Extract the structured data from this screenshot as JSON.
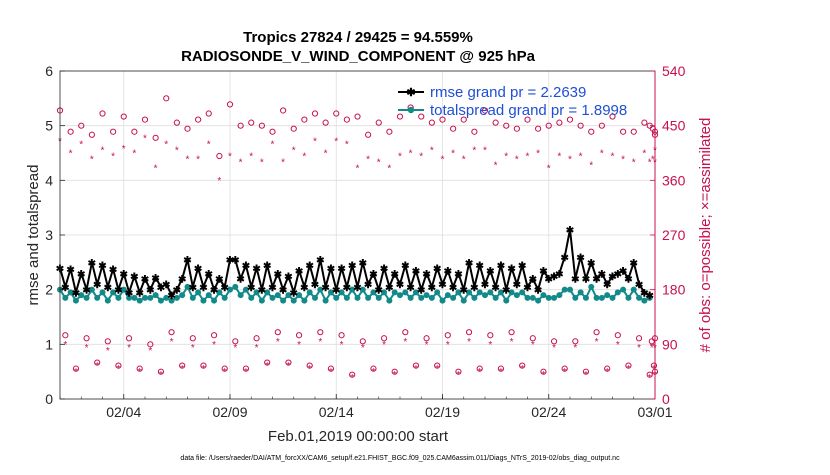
{
  "figure": {
    "title_line1": "Tropics 27824 / 29425 = 94.559%",
    "title_line2": "RADIOSONDE_V_WIND_COMPONENT @ 925 hPa",
    "footer": "data file: /Users/raeder/DAI/ATM_forcXX/CAM6_setup/f.e21.FHIST_BGC.f09_025.CAM6assim.011/Diags_NTrS_2019-02/obs_diag_output.nc"
  },
  "colors": {
    "rmse": "#000000",
    "spread": "#138a8a",
    "obs": "#c8104c",
    "legend_text": "#1f4fd6",
    "grid": "#dedede"
  },
  "chart_data": {
    "type": "line",
    "title": "Tropics 27824 / 29425 = 94.559%",
    "subtitle": "RADIOSONDE_V_WIND_COMPONENT @ 925 hPa",
    "xlabel": "Feb.01,2019 00:00:00 start",
    "ylabel": "rmse and totalspread",
    "y2label": "# of obs: o=possible; ×=assimilated",
    "xlim": [
      1,
      29
    ],
    "ylim": [
      0,
      6
    ],
    "y2lim": [
      0,
      540
    ],
    "x_ticks": [
      {
        "x": 4,
        "label": "02/04"
      },
      {
        "x": 9,
        "label": "02/09"
      },
      {
        "x": 14,
        "label": "02/14"
      },
      {
        "x": 19,
        "label": "02/19"
      },
      {
        "x": 24,
        "label": "02/24"
      },
      {
        "x": 29,
        "label": "03/01"
      }
    ],
    "y_ticks": [
      0,
      1,
      2,
      3,
      4,
      5,
      6
    ],
    "y2_ticks": [
      0,
      90,
      180,
      270,
      360,
      450,
      540
    ],
    "legend": [
      "rmse grand pr = 2.2639",
      "totalspread grand pr = 1.8998"
    ],
    "x": [
      1.0,
      1.25,
      1.5,
      1.75,
      2.0,
      2.25,
      2.5,
      2.75,
      3.0,
      3.25,
      3.5,
      3.75,
      4.0,
      4.25,
      4.5,
      4.75,
      5.0,
      5.25,
      5.5,
      5.75,
      6.0,
      6.25,
      6.5,
      6.75,
      7.0,
      7.25,
      7.5,
      7.75,
      8.0,
      8.25,
      8.5,
      8.75,
      9.0,
      9.25,
      9.5,
      9.75,
      10.0,
      10.25,
      10.5,
      10.75,
      11.0,
      11.25,
      11.5,
      11.75,
      12.0,
      12.25,
      12.5,
      12.75,
      13.0,
      13.25,
      13.5,
      13.75,
      14.0,
      14.25,
      14.5,
      14.75,
      15.0,
      15.25,
      15.5,
      15.75,
      16.0,
      16.25,
      16.5,
      16.75,
      17.0,
      17.25,
      17.5,
      17.75,
      18.0,
      18.25,
      18.5,
      18.75,
      19.0,
      19.25,
      19.5,
      19.75,
      20.0,
      20.25,
      20.5,
      20.75,
      21.0,
      21.25,
      21.5,
      21.75,
      22.0,
      22.25,
      22.5,
      22.75,
      23.0,
      23.25,
      23.5,
      23.75,
      24.0,
      24.25,
      24.5,
      24.75,
      25.0,
      25.25,
      25.5,
      25.75,
      26.0,
      26.25,
      26.5,
      26.75,
      27.0,
      27.25,
      27.5,
      27.75,
      28.0,
      28.25,
      28.5,
      28.75
    ],
    "series": [
      {
        "name": "rmse",
        "values": [
          2.4,
          2.05,
          2.38,
          1.95,
          2.3,
          2.0,
          2.5,
          2.1,
          2.45,
          2.05,
          2.38,
          2.0,
          2.3,
          1.95,
          2.25,
          1.95,
          2.2,
          2.0,
          2.22,
          2.05,
          2.1,
          1.9,
          2.0,
          2.2,
          2.55,
          2.05,
          2.4,
          2.05,
          2.3,
          2.0,
          2.2,
          2.05,
          2.55,
          2.55,
          2.2,
          2.45,
          2.05,
          2.4,
          2.0,
          2.45,
          2.05,
          2.3,
          2.0,
          2.25,
          1.95,
          2.35,
          2.05,
          2.45,
          2.1,
          2.55,
          2.05,
          2.4,
          2.0,
          2.4,
          2.05,
          2.45,
          2.05,
          2.5,
          2.1,
          2.3,
          2.0,
          2.4,
          2.05,
          2.3,
          2.1,
          2.45,
          2.05,
          2.35,
          2.0,
          2.3,
          2.05,
          2.4,
          2.1,
          2.35,
          2.05,
          2.3,
          2.0,
          2.5,
          2.05,
          2.45,
          2.1,
          2.35,
          2.05,
          2.45,
          2.0,
          2.4,
          2.1,
          2.45,
          2.05,
          2.2,
          2.0,
          2.35,
          2.2,
          2.25,
          2.3,
          2.6,
          3.1,
          2.2,
          2.6,
          2.2,
          2.5,
          2.2,
          2.3,
          2.1,
          2.25,
          2.3,
          2.35,
          2.2,
          2.5,
          2.1,
          1.95,
          1.9
        ]
      },
      {
        "name": "totalspread",
        "values": [
          2.0,
          1.85,
          1.95,
          1.8,
          1.9,
          1.85,
          2.0,
          1.85,
          1.95,
          1.8,
          1.95,
          1.85,
          2.0,
          1.85,
          1.85,
          1.8,
          1.85,
          1.85,
          1.9,
          1.8,
          1.85,
          1.8,
          1.85,
          1.9,
          2.05,
          1.85,
          1.95,
          1.8,
          1.9,
          1.8,
          1.95,
          1.85,
          2.0,
          2.05,
          1.9,
          2.0,
          1.85,
          1.95,
          1.8,
          1.95,
          1.85,
          1.9,
          1.8,
          1.9,
          1.8,
          1.9,
          1.8,
          1.95,
          1.85,
          2.0,
          1.8,
          1.95,
          1.85,
          1.95,
          1.85,
          2.0,
          1.85,
          2.0,
          1.85,
          1.95,
          1.85,
          1.95,
          1.8,
          1.95,
          1.9,
          1.95,
          1.85,
          1.95,
          1.85,
          1.9,
          1.85,
          1.95,
          1.8,
          1.9,
          1.85,
          1.95,
          1.8,
          1.95,
          1.85,
          1.95,
          1.9,
          1.95,
          1.85,
          1.95,
          1.8,
          1.95,
          1.9,
          1.95,
          1.85,
          1.85,
          1.8,
          1.9,
          1.85,
          1.85,
          1.9,
          2.0,
          2.0,
          1.85,
          1.95,
          1.85,
          2.05,
          1.85,
          1.85,
          1.9,
          1.85,
          1.95,
          2.0,
          1.85,
          2.0,
          1.85,
          1.8,
          1.85
        ]
      }
    ],
    "obs_possible_00z": [
      475,
      440,
      450,
      435,
      470,
      440,
      465,
      440,
      460,
      430,
      495,
      455,
      445,
      460,
      470,
      400,
      485,
      450,
      455,
      450,
      440,
      475,
      445,
      460,
      470,
      455,
      470,
      460,
      465,
      435,
      455,
      440,
      465,
      480,
      465,
      455,
      460,
      445,
      460,
      440,
      475,
      455,
      450,
      445,
      460,
      445,
      450,
      455,
      460,
      450,
      440,
      450,
      465,
      440,
      440,
      455,
      450,
      445,
      435,
      440
    ],
    "obs_assim_00z": [
      425,
      405,
      420,
      395,
      410,
      400,
      412,
      405,
      430,
      380,
      420,
      410,
      395,
      395,
      420,
      360,
      400,
      390,
      400,
      390,
      420,
      390,
      410,
      400,
      425,
      405,
      425,
      420,
      380,
      395,
      390,
      380,
      400,
      405,
      400,
      410,
      395,
      405,
      395,
      410,
      410,
      385,
      400,
      395,
      400,
      405,
      380,
      400,
      395,
      400,
      385,
      405,
      400,
      395,
      390,
      405,
      390,
      395,
      410,
      390
    ],
    "obs_possible_12z": [
      105,
      50,
      100,
      60,
      95,
      55,
      100,
      50,
      90,
      45,
      110,
      55,
      100,
      55,
      105,
      50,
      95,
      50,
      100,
      60,
      110,
      60,
      105,
      55,
      110,
      50,
      105,
      40,
      95,
      50,
      100,
      45,
      110,
      55,
      100,
      55,
      105,
      45,
      110,
      50,
      105,
      50,
      110,
      55,
      100,
      45,
      95,
      50,
      95,
      45,
      110,
      50,
      105,
      55,
      100,
      40,
      95,
      55,
      100,
      45
    ],
    "obs_assim_12z": [
      90,
      45,
      85,
      55,
      80,
      50,
      85,
      45,
      80,
      40,
      95,
      50,
      85,
      50,
      90,
      45,
      85,
      45,
      85,
      55,
      95,
      55,
      90,
      50,
      95,
      45,
      90,
      35,
      85,
      45,
      90,
      40,
      95,
      50,
      90,
      50,
      90,
      40,
      95,
      45,
      90,
      45,
      95,
      50,
      90,
      40,
      85,
      45,
      85,
      40,
      95,
      45,
      90,
      50,
      85,
      35,
      85,
      50,
      85,
      40
    ],
    "obs_times_00z": [
      1.0,
      1.5,
      2.0,
      2.5,
      3.0,
      3.5,
      4.0,
      4.5,
      5.0,
      5.5,
      6.0,
      6.5,
      7.0,
      7.5,
      8.0,
      8.5,
      9.0,
      9.5,
      10.0,
      10.5,
      11.0,
      11.5,
      12.0,
      12.5,
      13.0,
      13.5,
      14.0,
      14.5,
      15.0,
      15.5,
      16.0,
      16.5,
      17.0,
      17.5,
      18.0,
      18.5,
      19.0,
      19.5,
      20.0,
      20.5,
      21.0,
      21.5,
      22.0,
      22.5,
      23.0,
      23.5,
      24.0,
      24.5,
      25.0,
      25.5,
      26.0,
      26.5,
      27.0,
      27.5,
      28.0,
      28.5,
      28.75,
      28.9,
      29.0,
      29.0
    ],
    "obs_times_12z": [
      1.25,
      1.75,
      2.25,
      2.75,
      3.25,
      3.75,
      4.25,
      4.75,
      5.25,
      5.75,
      6.25,
      6.75,
      7.25,
      7.75,
      8.25,
      8.75,
      9.25,
      9.75,
      10.25,
      10.75,
      11.25,
      11.75,
      12.25,
      12.75,
      13.25,
      13.75,
      14.25,
      14.75,
      15.25,
      15.75,
      16.25,
      16.75,
      17.25,
      17.75,
      18.25,
      18.75,
      19.25,
      19.75,
      20.25,
      20.75,
      21.25,
      21.75,
      22.25,
      22.75,
      23.25,
      23.75,
      24.25,
      24.75,
      25.25,
      25.75,
      26.25,
      26.75,
      27.25,
      27.75,
      28.25,
      28.75,
      28.85,
      28.95,
      29.0,
      29.0
    ]
  }
}
